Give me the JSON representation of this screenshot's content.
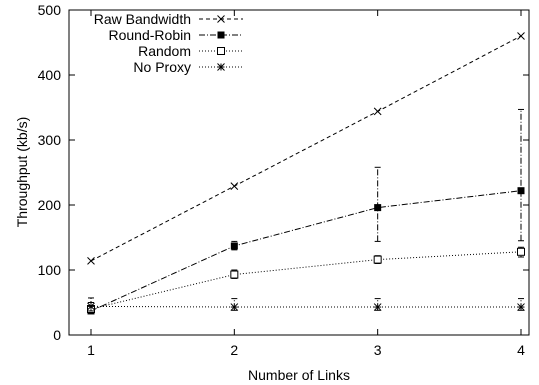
{
  "chart_data": {
    "type": "line",
    "xlabel": "Number of Links",
    "ylabel": "Throughput (kb/s)",
    "xlim": [
      1,
      4
    ],
    "ylim": [
      0,
      500
    ],
    "x": [
      1,
      2,
      3,
      4
    ],
    "xticks": [
      1,
      2,
      3,
      4
    ],
    "yticks": [
      0,
      100,
      200,
      300,
      400,
      500
    ],
    "grid": false,
    "legend_position": "top-left",
    "series": [
      {
        "name": "Raw Bandwidth",
        "values": [
          114,
          229,
          344,
          460
        ],
        "marker": "x",
        "dash": "dashed",
        "error_bars": null
      },
      {
        "name": "Round-Robin",
        "values": [
          37,
          137,
          196,
          222
        ],
        "marker": "filled-square",
        "dash": "dash-dot",
        "error_bars": [
          [
            34,
            41
          ],
          [
            131,
            144
          ],
          [
            144,
            258
          ],
          [
            145,
            347
          ]
        ]
      },
      {
        "name": "Random",
        "values": [
          40,
          93,
          116,
          128
        ],
        "marker": "open-square",
        "dash": "dotted",
        "error_bars": [
          [
            33,
            50
          ],
          [
            87,
            100
          ],
          [
            110,
            122
          ],
          [
            120,
            135
          ]
        ]
      },
      {
        "name": "No Proxy",
        "values": [
          44,
          43,
          43,
          43
        ],
        "marker": "star",
        "dash": "dotted",
        "error_bars": [
          [
            37,
            57
          ],
          [
            38,
            56
          ],
          [
            38,
            56
          ],
          [
            38,
            56
          ]
        ]
      }
    ]
  }
}
